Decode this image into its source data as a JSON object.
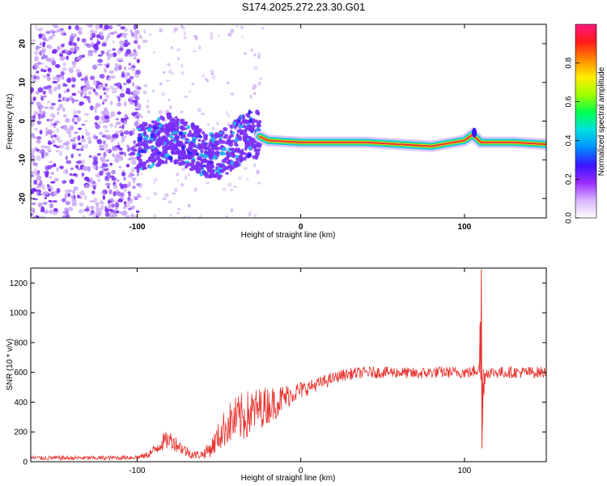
{
  "title": "S174.2025.272.23.30.G01",
  "colors": {
    "snr_line": "#e8322e",
    "scatter_dot": "#7b2ff7",
    "scatter_light": "#c9a6f5",
    "ridge_core": "#e8323c",
    "ridge_mid": "#38e06a",
    "ridge_outer": "#1fc8e8"
  },
  "chart_data": [
    {
      "type": "heatmap",
      "name": "spectrogram",
      "xlabel": "Height of straight line (km)",
      "ylabel": "Frequency (Hz)",
      "xlim": [
        -165,
        150
      ],
      "ylim": [
        -25,
        25
      ],
      "x_ticks": [
        {
          "value": -100,
          "label": "-100"
        },
        {
          "value": 0,
          "label": "0"
        },
        {
          "value": 100,
          "label": "100"
        }
      ],
      "y_ticks": [
        {
          "value": 20,
          "label": "20"
        },
        {
          "value": 10,
          "label": "10"
        },
        {
          "value": 0,
          "label": "0"
        },
        {
          "value": -10,
          "label": "-10"
        },
        {
          "value": -20,
          "label": "-20"
        }
      ],
      "ridge": {
        "description": "dominant frequency vs height",
        "x": [
          -100,
          -90,
          -80,
          -70,
          -60,
          -50,
          -40,
          -30,
          -25,
          -20,
          0,
          20,
          40,
          60,
          80,
          100,
          105,
          110,
          130,
          150
        ],
        "y": [
          -7,
          -6,
          -4,
          -6,
          -8,
          -9,
          -6,
          -3,
          -4,
          -5,
          -5.5,
          -5.5,
          -5.5,
          -6,
          -6.5,
          -5,
          -3.5,
          -5.5,
          -5.5,
          -6
        ]
      },
      "colorbar": {
        "label": "Normalized spectral amplitude",
        "range": [
          0,
          1
        ],
        "ticks": [
          {
            "value": 0.0,
            "label": "0.0"
          },
          {
            "value": 0.2,
            "label": "0.2"
          },
          {
            "value": 0.4,
            "label": "0.4"
          },
          {
            "value": 0.6,
            "label": "0.6"
          },
          {
            "value": 0.8,
            "label": "0.8"
          }
        ],
        "stops": [
          "#ffffff",
          "#d9b3ff",
          "#9a2cff",
          "#3a14ff",
          "#0090ff",
          "#00e0e0",
          "#00ff50",
          "#a0ff00",
          "#ffee00",
          "#ff8800",
          "#ff1a1a",
          "#ff1a80"
        ]
      }
    },
    {
      "type": "line",
      "name": "snr",
      "xlabel": "Height of straight line (km)",
      "ylabel": "SNR (10 * v/v)",
      "xlim": [
        -165,
        150
      ],
      "ylim": [
        0,
        1300
      ],
      "x_ticks": [
        {
          "value": -100,
          "label": "-100"
        },
        {
          "value": 0,
          "label": "0"
        },
        {
          "value": 100,
          "label": "100"
        }
      ],
      "y_ticks": [
        {
          "value": 0,
          "label": "0"
        },
        {
          "value": 200,
          "label": "200"
        },
        {
          "value": 400,
          "label": "400"
        },
        {
          "value": 600,
          "label": "600"
        },
        {
          "value": 800,
          "label": "800"
        },
        {
          "value": 1000,
          "label": "1000"
        },
        {
          "value": 1200,
          "label": "1200"
        }
      ],
      "envelope": {
        "x": [
          -165,
          -120,
          -100,
          -95,
          -90,
          -85,
          -80,
          -75,
          -70,
          -65,
          -60,
          -55,
          -50,
          -45,
          -40,
          -35,
          -30,
          -25,
          -20,
          -15,
          -10,
          -5,
          0,
          5,
          10,
          15,
          20,
          25,
          30,
          40,
          50,
          60,
          70,
          80,
          90,
          100,
          105,
          108,
          109,
          110,
          111,
          112,
          113,
          115,
          120,
          130,
          140,
          150
        ],
        "mean": [
          25,
          25,
          30,
          40,
          70,
          130,
          150,
          110,
          70,
          45,
          50,
          90,
          170,
          250,
          280,
          300,
          330,
          360,
          380,
          400,
          430,
          460,
          480,
          500,
          520,
          540,
          560,
          580,
          590,
          600,
          600,
          600,
          590,
          600,
          600,
          600,
          600,
          630,
          700,
          900,
          300,
          560,
          600,
          600,
          600,
          600,
          600,
          600
        ],
        "spread": [
          15,
          15,
          15,
          20,
          40,
          60,
          60,
          50,
          40,
          30,
          30,
          60,
          100,
          140,
          160,
          170,
          160,
          140,
          130,
          110,
          90,
          70,
          60,
          50,
          45,
          45,
          40,
          40,
          40,
          40,
          40,
          40,
          40,
          40,
          40,
          40,
          40,
          60,
          120,
          200,
          200,
          80,
          50,
          40,
          40,
          40,
          40,
          40
        ]
      },
      "peaks": [
        {
          "x": 110,
          "y": 1290
        },
        {
          "x": 109,
          "y": 940
        },
        {
          "x": 111,
          "y": 90
        }
      ]
    }
  ]
}
